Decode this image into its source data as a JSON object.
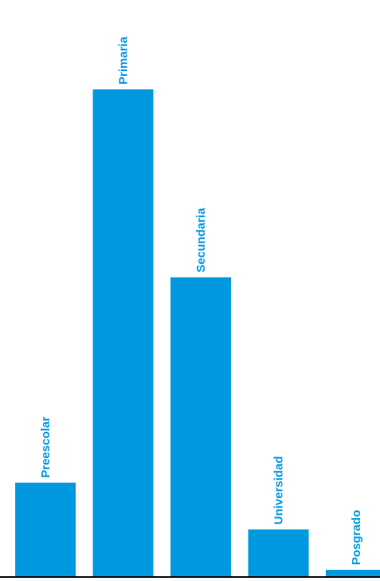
{
  "chart_data": {
    "type": "bar",
    "categories": [
      "Preescolar",
      "Primaria",
      "Secundaria",
      "Universidad",
      "Posgrado"
    ],
    "values": [
      118,
      614,
      377,
      59,
      8
    ],
    "title": "",
    "xlabel": "",
    "ylabel": "",
    "ylim": [
      0,
      614
    ],
    "grid": false,
    "legend": "none",
    "bar_color": "#0099e0",
    "label_color": "#0099e0",
    "axis_color": "#000000"
  }
}
